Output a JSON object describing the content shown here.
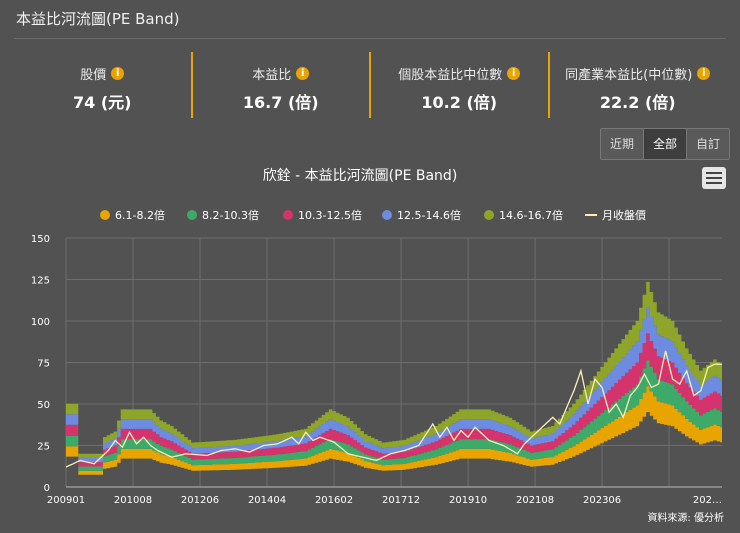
{
  "header": {
    "title": "本益比河流圖(PE Band)"
  },
  "stats": [
    {
      "label": "股價",
      "value": "74 (元)"
    },
    {
      "label": "本益比",
      "value": "16.7 (倍)"
    },
    {
      "label": "個股本益比中位數",
      "value": "10.2 (倍)"
    },
    {
      "label": "同產業本益比(中位數)",
      "value": "22.2 (倍)"
    }
  ],
  "range_buttons": [
    {
      "label": "近期",
      "active": false
    },
    {
      "label": "全部",
      "active": true
    },
    {
      "label": "自訂",
      "active": false
    }
  ],
  "source": "資料來源: 優分析",
  "colors": {
    "bands": [
      "#e8a400",
      "#3daa6a",
      "#d4336b",
      "#6d8be0",
      "#8fa52a"
    ],
    "price": "#f5f0b8",
    "grid": "#6e6e6e"
  },
  "chart_data": {
    "type": "area",
    "title": "欣銓 - 本益比河流圖(PE Band)",
    "ylim": [
      0,
      150
    ],
    "yticks": [
      0,
      25,
      50,
      75,
      100,
      125,
      150
    ],
    "xtick_labels": [
      "200901",
      "201008",
      "201206",
      "201404",
      "201602",
      "201712",
      "201910",
      "202108",
      "202306",
      "202…"
    ],
    "legend": [
      "6.1-8.2倍",
      "8.2-10.3倍",
      "10.3-12.5倍",
      "12.5-14.6倍",
      "14.6-16.7倍",
      "月收盤價"
    ],
    "multipliers": [
      6.1,
      8.2,
      10.3,
      12.5,
      14.6,
      16.7
    ],
    "eps_keyframes": [
      [
        0,
        3.0
      ],
      [
        3,
        3.0
      ],
      [
        4,
        1.2
      ],
      [
        10,
        1.2
      ],
      [
        11,
        1.8
      ],
      [
        14,
        2.0
      ],
      [
        16,
        2.8
      ],
      [
        24,
        2.8
      ],
      [
        27,
        2.4
      ],
      [
        30,
        2.2
      ],
      [
        36,
        1.6
      ],
      [
        48,
        1.7
      ],
      [
        60,
        1.9
      ],
      [
        68,
        2.1
      ],
      [
        75,
        2.8
      ],
      [
        80,
        2.5
      ],
      [
        85,
        1.9
      ],
      [
        90,
        1.6
      ],
      [
        96,
        1.7
      ],
      [
        105,
        2.2
      ],
      [
        112,
        2.8
      ],
      [
        120,
        2.8
      ],
      [
        126,
        2.5
      ],
      [
        132,
        2.0
      ],
      [
        138,
        2.2
      ],
      [
        144,
        3.0
      ],
      [
        150,
        4.0
      ],
      [
        156,
        5.0
      ],
      [
        162,
        6.0
      ],
      [
        165,
        7.4
      ],
      [
        168,
        6.3
      ],
      [
        172,
        6.0
      ],
      [
        176,
        5.0
      ],
      [
        180,
        4.2
      ],
      [
        184,
        4.6
      ],
      [
        186,
        4.4
      ]
    ],
    "price_keyframes": [
      [
        0,
        12
      ],
      [
        2,
        14
      ],
      [
        4,
        16
      ],
      [
        6,
        15
      ],
      [
        8,
        14
      ],
      [
        10,
        18
      ],
      [
        12,
        22
      ],
      [
        14,
        28
      ],
      [
        16,
        24
      ],
      [
        18,
        33
      ],
      [
        20,
        26
      ],
      [
        22,
        30
      ],
      [
        24,
        25
      ],
      [
        26,
        22
      ],
      [
        28,
        20
      ],
      [
        30,
        18
      ],
      [
        34,
        20
      ],
      [
        40,
        19
      ],
      [
        44,
        22
      ],
      [
        48,
        23
      ],
      [
        52,
        21
      ],
      [
        56,
        25
      ],
      [
        60,
        26
      ],
      [
        64,
        30
      ],
      [
        66,
        26
      ],
      [
        68,
        33
      ],
      [
        70,
        28
      ],
      [
        72,
        30
      ],
      [
        76,
        27
      ],
      [
        80,
        20
      ],
      [
        84,
        18
      ],
      [
        88,
        16
      ],
      [
        92,
        20
      ],
      [
        96,
        22
      ],
      [
        100,
        25
      ],
      [
        104,
        38
      ],
      [
        106,
        30
      ],
      [
        108,
        36
      ],
      [
        110,
        28
      ],
      [
        112,
        34
      ],
      [
        114,
        30
      ],
      [
        116,
        36
      ],
      [
        118,
        32
      ],
      [
        120,
        28
      ],
      [
        124,
        25
      ],
      [
        128,
        20
      ],
      [
        130,
        26
      ],
      [
        134,
        34
      ],
      [
        138,
        42
      ],
      [
        140,
        38
      ],
      [
        144,
        58
      ],
      [
        146,
        70
      ],
      [
        148,
        50
      ],
      [
        150,
        65
      ],
      [
        152,
        60
      ],
      [
        154,
        45
      ],
      [
        156,
        50
      ],
      [
        158,
        42
      ],
      [
        160,
        55
      ],
      [
        162,
        60
      ],
      [
        164,
        68
      ],
      [
        166,
        60
      ],
      [
        168,
        62
      ],
      [
        170,
        82
      ],
      [
        172,
        65
      ],
      [
        174,
        62
      ],
      [
        176,
        70
      ],
      [
        178,
        55
      ],
      [
        180,
        58
      ],
      [
        182,
        72
      ],
      [
        184,
        74
      ],
      [
        186,
        74
      ]
    ]
  }
}
